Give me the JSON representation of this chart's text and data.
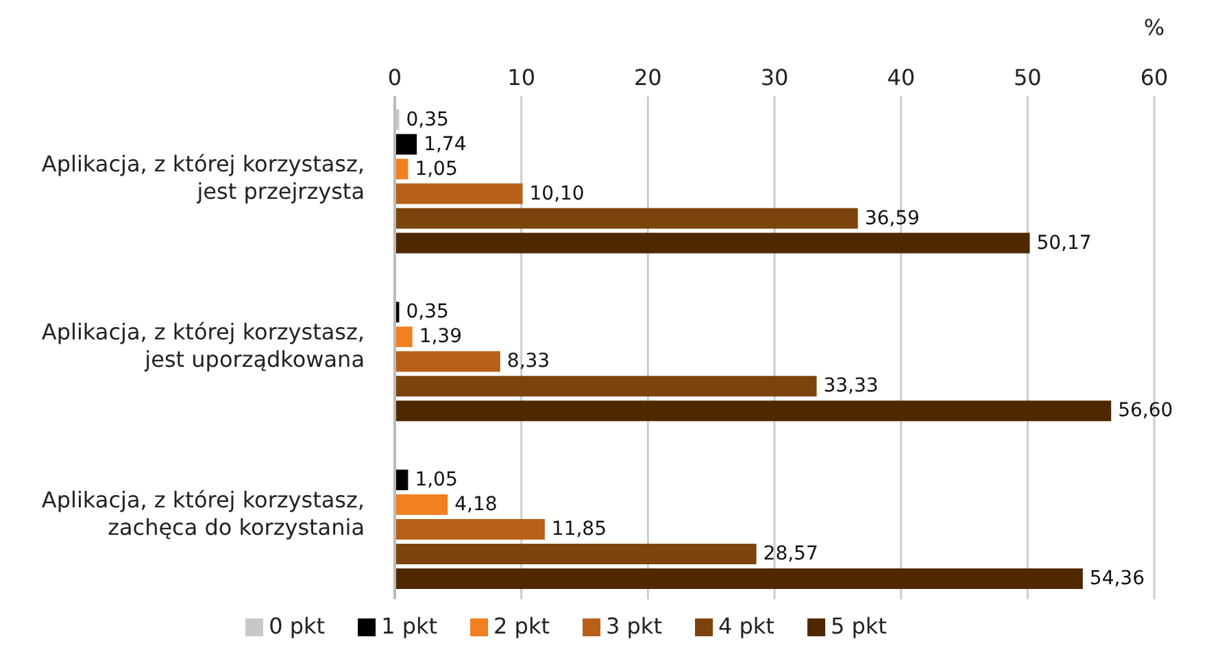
{
  "chart_data": {
    "type": "bar",
    "orientation": "horizontal",
    "xlabel": "%",
    "categories": [
      "Aplikacja, z której korzystasz, jest przejrzysta",
      "Aplikacja, z której korzystasz, jest uporządkowana",
      "Aplikacja, z której korzystasz, zachęca do korzystania"
    ],
    "series": [
      {
        "name": "0 pkt",
        "color": "#c8c8c8",
        "values": [
          0.35,
          null,
          null
        ],
        "value_labels": [
          "0,35",
          null,
          null
        ]
      },
      {
        "name": "1 pkt",
        "color": "#000000",
        "values": [
          1.74,
          0.35,
          1.05
        ],
        "value_labels": [
          "1,74",
          "0,35",
          "1,05"
        ]
      },
      {
        "name": "2 pkt",
        "color": "#f08020",
        "values": [
          1.05,
          1.39,
          4.18
        ],
        "value_labels": [
          "1,05",
          "1,39",
          "4,18"
        ]
      },
      {
        "name": "3 pkt",
        "color": "#b8601a",
        "values": [
          10.1,
          8.33,
          11.85
        ],
        "value_labels": [
          "10,10",
          "8,33",
          "11,85"
        ]
      },
      {
        "name": "4 pkt",
        "color": "#7c440c",
        "values": [
          36.59,
          33.33,
          28.57
        ],
        "value_labels": [
          "36,59",
          "33,33",
          "28,57"
        ]
      },
      {
        "name": "5 pkt",
        "color": "#502800",
        "values": [
          50.17,
          56.6,
          54.36
        ],
        "value_labels": [
          "50,17",
          "56,60",
          "54,36"
        ]
      }
    ],
    "xlim": [
      0,
      60
    ],
    "xticks": [
      0,
      10,
      20,
      30,
      40,
      50,
      60
    ],
    "grid": "x",
    "legend": "bottom"
  }
}
